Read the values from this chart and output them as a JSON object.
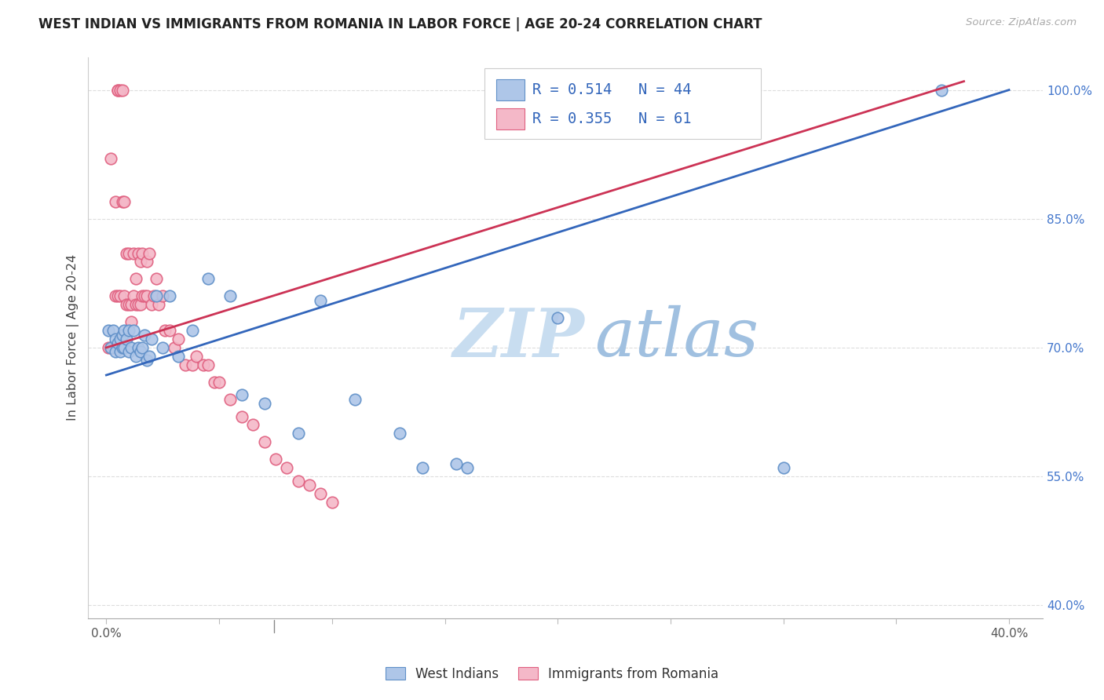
{
  "title": "WEST INDIAN VS IMMIGRANTS FROM ROMANIA IN LABOR FORCE | AGE 20-24 CORRELATION CHART",
  "source": "Source: ZipAtlas.com",
  "ylabel": "In Labor Force | Age 20-24",
  "blue_R": 0.514,
  "blue_N": 44,
  "pink_R": 0.355,
  "pink_N": 61,
  "blue_color": "#aec6e8",
  "pink_color": "#f4b8c8",
  "blue_edge": "#6090c8",
  "pink_edge": "#e06080",
  "blue_line_color": "#3366bb",
  "pink_line_color": "#cc3355",
  "watermark_zip_color": "#c8ddf0",
  "watermark_atlas_color": "#90b8d8",
  "legend_label_blue": "West Indians",
  "legend_label_pink": "Immigrants from Romania",
  "title_color": "#222222",
  "source_color": "#aaaaaa",
  "tick_color_y": "#4477cc",
  "tick_color_x": "#555555",
  "grid_color": "#dddddd",
  "xlim": [
    -0.008,
    0.415
  ],
  "ylim": [
    0.385,
    1.038
  ],
  "xtick_vals": [
    0.0,
    0.05,
    0.1,
    0.15,
    0.2,
    0.25,
    0.3,
    0.35,
    0.4
  ],
  "xtick_labels": [
    "0.0%",
    "",
    "",
    "",
    "",
    "",
    "",
    "",
    "40.0%"
  ],
  "ytick_vals": [
    0.4,
    0.55,
    0.7,
    0.85,
    1.0
  ],
  "ytick_labels": [
    "40.0%",
    "55.0%",
    "70.0%",
    "85.0%",
    "100.0%"
  ],
  "blue_x": [
    0.001,
    0.002,
    0.003,
    0.004,
    0.004,
    0.005,
    0.006,
    0.006,
    0.007,
    0.007,
    0.008,
    0.008,
    0.009,
    0.01,
    0.01,
    0.011,
    0.012,
    0.013,
    0.014,
    0.015,
    0.016,
    0.017,
    0.018,
    0.019,
    0.02,
    0.022,
    0.025,
    0.028,
    0.032,
    0.038,
    0.045,
    0.055,
    0.06,
    0.07,
    0.085,
    0.095,
    0.11,
    0.13,
    0.14,
    0.155,
    0.16,
    0.2,
    0.3,
    0.37
  ],
  "blue_y": [
    0.72,
    0.7,
    0.72,
    0.71,
    0.695,
    0.705,
    0.695,
    0.71,
    0.7,
    0.715,
    0.7,
    0.72,
    0.71,
    0.695,
    0.72,
    0.7,
    0.72,
    0.69,
    0.7,
    0.695,
    0.7,
    0.715,
    0.685,
    0.69,
    0.71,
    0.76,
    0.7,
    0.76,
    0.69,
    0.72,
    0.78,
    0.76,
    0.645,
    0.635,
    0.6,
    0.755,
    0.64,
    0.6,
    0.56,
    0.565,
    0.56,
    0.735,
    0.56,
    1.0
  ],
  "pink_x": [
    0.001,
    0.002,
    0.002,
    0.003,
    0.004,
    0.004,
    0.005,
    0.005,
    0.005,
    0.006,
    0.006,
    0.007,
    0.007,
    0.008,
    0.008,
    0.009,
    0.009,
    0.01,
    0.01,
    0.011,
    0.011,
    0.012,
    0.012,
    0.013,
    0.013,
    0.014,
    0.014,
    0.015,
    0.015,
    0.016,
    0.016,
    0.017,
    0.018,
    0.018,
    0.019,
    0.02,
    0.021,
    0.022,
    0.023,
    0.025,
    0.026,
    0.028,
    0.03,
    0.032,
    0.035,
    0.038,
    0.04,
    0.043,
    0.045,
    0.048,
    0.05,
    0.055,
    0.06,
    0.065,
    0.07,
    0.075,
    0.08,
    0.085,
    0.09,
    0.095,
    0.1
  ],
  "pink_y": [
    0.7,
    0.7,
    0.92,
    0.7,
    0.87,
    0.76,
    1.0,
    1.0,
    0.76,
    1.0,
    0.76,
    1.0,
    0.87,
    0.76,
    0.87,
    0.75,
    0.81,
    0.75,
    0.81,
    0.73,
    0.75,
    0.76,
    0.81,
    0.78,
    0.75,
    0.81,
    0.75,
    0.8,
    0.75,
    0.76,
    0.81,
    0.76,
    0.76,
    0.8,
    0.81,
    0.75,
    0.76,
    0.78,
    0.75,
    0.76,
    0.72,
    0.72,
    0.7,
    0.71,
    0.68,
    0.68,
    0.69,
    0.68,
    0.68,
    0.66,
    0.66,
    0.64,
    0.62,
    0.61,
    0.59,
    0.57,
    0.56,
    0.545,
    0.54,
    0.53,
    0.52
  ],
  "blue_trend_x": [
    0.0,
    0.4
  ],
  "blue_trend_y": [
    0.668,
    1.0
  ],
  "pink_trend_x": [
    0.0,
    0.38
  ],
  "pink_trend_y": [
    0.7,
    1.01
  ]
}
